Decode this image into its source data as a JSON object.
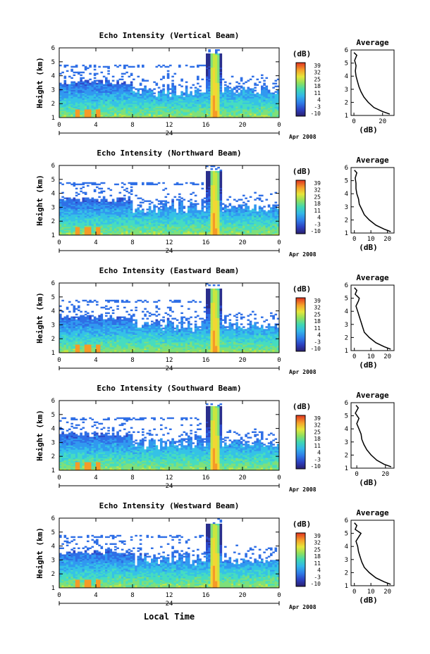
{
  "chart_data": {
    "type": "heatmap",
    "x_ticks": [
      "0",
      "4",
      "8",
      "12",
      "16",
      "20",
      "0"
    ],
    "date_label": "24",
    "month_label": "Apr 2008",
    "y_ticks": [
      "1",
      "2",
      "3",
      "4",
      "5",
      "6"
    ],
    "ylabel": "Height (km)",
    "xlabel": "Local Time",
    "ylim": [
      1,
      6
    ],
    "xlim": [
      0,
      24
    ],
    "colorbar": {
      "unit": "(dB)",
      "ticks": [
        "39",
        "32",
        "25",
        "18",
        "11",
        "4",
        "-3",
        "-10"
      ],
      "range": [
        -10,
        39
      ]
    },
    "panels": [
      {
        "title": "Echo Intensity (Vertical Beam)",
        "avg_title": "Average",
        "avg_xlabel": "(dB)",
        "avg_xticks": [
          "0",
          "20"
        ],
        "avg_xlim": [
          -2,
          28
        ],
        "avg_profile": {
          "height": [
            1.1,
            1.3,
            1.6,
            2.0,
            2.4,
            2.8,
            3.2,
            3.6,
            4.0,
            4.4,
            4.8,
            5.2,
            5.6,
            5.8
          ],
          "db": [
            25,
            20,
            14,
            10,
            7,
            5,
            3.5,
            2.5,
            1.5,
            1.0,
            1.5,
            0.5,
            2,
            0
          ]
        }
      },
      {
        "title": "Echo Intensity (Northward Beam)",
        "avg_title": "Average",
        "avg_xlabel": "(dB)",
        "avg_xticks": [
          "0",
          "10",
          "20"
        ],
        "avg_xlim": [
          -2,
          24
        ],
        "avg_profile": {
          "height": [
            1.1,
            1.3,
            1.6,
            2.0,
            2.4,
            2.8,
            3.2,
            3.6,
            4.0,
            4.4,
            4.8,
            5.2,
            5.6,
            5.8
          ],
          "db": [
            22,
            18,
            13,
            9,
            6,
            4.5,
            3,
            2.5,
            1.5,
            1,
            1,
            0.5,
            1.5,
            0
          ]
        }
      },
      {
        "title": "Echo Intensity (Eastward Beam)",
        "avg_title": "Average",
        "avg_xlabel": "(dB)",
        "avg_xticks": [
          "0",
          "10",
          "20"
        ],
        "avg_xlim": [
          -2,
          24
        ],
        "avg_profile": {
          "height": [
            1.1,
            1.3,
            1.6,
            2.0,
            2.4,
            2.8,
            3.2,
            3.6,
            4.0,
            4.4,
            4.8,
            5.0,
            5.3,
            5.6,
            5.8
          ],
          "db": [
            22,
            18,
            13,
            9,
            6,
            5,
            4,
            3,
            2,
            1,
            2.5,
            3,
            0.5,
            1.5,
            0
          ]
        }
      },
      {
        "title": "Echo Intensity (Southward Beam)",
        "avg_title": "Average",
        "avg_xlabel": "(dB)",
        "avg_xticks": [
          "0",
          "20"
        ],
        "avg_xlim": [
          -4,
          26
        ],
        "avg_profile": {
          "height": [
            1.1,
            1.3,
            1.6,
            2.0,
            2.4,
            2.8,
            3.2,
            3.6,
            4.0,
            4.4,
            4.8,
            5.2,
            5.6,
            5.8
          ],
          "db": [
            24,
            19,
            14,
            10,
            7,
            5,
            3.5,
            3,
            1.5,
            0,
            1.5,
            -1,
            1,
            -0.5
          ]
        }
      },
      {
        "title": "Echo Intensity (Westward Beam)",
        "avg_title": "Average",
        "avg_xlabel": "(dB)",
        "avg_xticks": [
          "0",
          "10",
          "20"
        ],
        "avg_xlim": [
          -2,
          24
        ],
        "avg_profile": {
          "height": [
            1.1,
            1.3,
            1.6,
            2.0,
            2.4,
            2.8,
            3.2,
            3.6,
            4.0,
            4.4,
            4.8,
            5.0,
            5.3,
            5.6,
            5.8
          ],
          "db": [
            22,
            18,
            13,
            9,
            6,
            4.5,
            3.5,
            2.5,
            2,
            1,
            3,
            4,
            0.5,
            1.5,
            0
          ]
        }
      }
    ]
  }
}
